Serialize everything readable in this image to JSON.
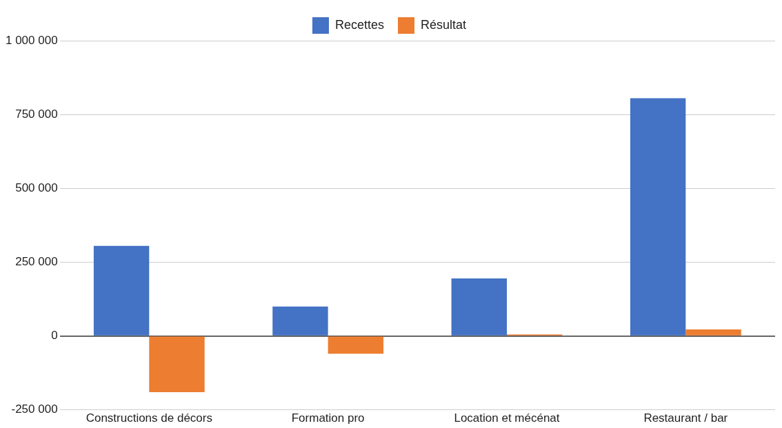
{
  "chart_data": {
    "type": "bar",
    "categories": [
      "Constructions de décors",
      "Formation pro",
      "Location et mécénat",
      "Restaurant / bar"
    ],
    "series": [
      {
        "name": "Recettes",
        "color": "#4472c4",
        "values": [
          305000,
          100000,
          195000,
          805000
        ]
      },
      {
        "name": "Résultat",
        "color": "#ed7d31",
        "values": [
          -190000,
          -60000,
          5000,
          22000
        ]
      }
    ],
    "ylim": [
      -250000,
      1000000
    ],
    "yticks": [
      {
        "value": -250000,
        "label": "-250 000"
      },
      {
        "value": 0,
        "label": "0"
      },
      {
        "value": 250000,
        "label": "250 000"
      },
      {
        "value": 500000,
        "label": "500 000"
      },
      {
        "value": 750000,
        "label": "750 000"
      },
      {
        "value": 1000000,
        "label": "1 000 000"
      }
    ],
    "grid": "y",
    "legend": "top"
  }
}
